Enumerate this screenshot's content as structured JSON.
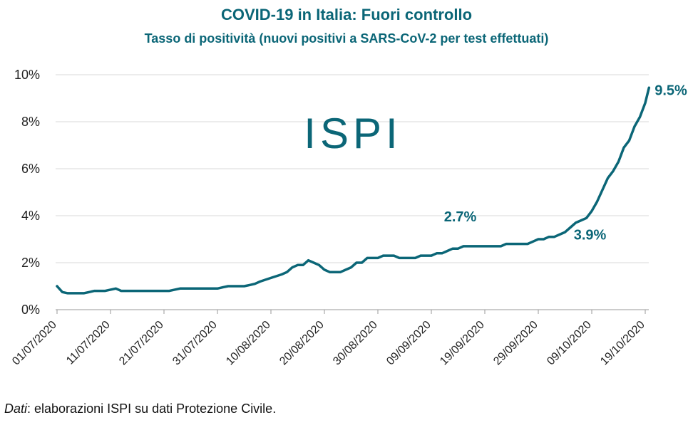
{
  "chart_data": {
    "type": "line",
    "title": "COVID-19 in Italia: Fuori controllo",
    "subtitle": "Tasso di positività (nuovi positivi a SARS-CoV-2 per test effettuati)",
    "xlabel": "",
    "ylabel": "",
    "ylim": [
      0,
      10
    ],
    "yticks": [
      {
        "value": 0,
        "label": "0%"
      },
      {
        "value": 2,
        "label": "2%"
      },
      {
        "value": 4,
        "label": "4%"
      },
      {
        "value": 6,
        "label": "6%"
      },
      {
        "value": 8,
        "label": "8%"
      },
      {
        "value": 10,
        "label": "10%"
      }
    ],
    "xticks": [
      {
        "day": 0,
        "label": "01/07/2020"
      },
      {
        "day": 10,
        "label": "11/07/2020"
      },
      {
        "day": 20,
        "label": "21/07/2020"
      },
      {
        "day": 30,
        "label": "31/07/2020"
      },
      {
        "day": 40,
        "label": "10/08/2020"
      },
      {
        "day": 50,
        "label": "20/08/2020"
      },
      {
        "day": 60,
        "label": "30/08/2020"
      },
      {
        "day": 70,
        "label": "09/09/2020"
      },
      {
        "day": 80,
        "label": "19/09/2020"
      },
      {
        "day": 90,
        "label": "29/09/2020"
      },
      {
        "day": 100,
        "label": "09/10/2020"
      },
      {
        "day": 110,
        "label": "19/10/2020"
      }
    ],
    "series": [
      {
        "name": "Tasso di positività",
        "color": "#0b6677",
        "points": [
          [
            0,
            1.0
          ],
          [
            1,
            0.75
          ],
          [
            2,
            0.7
          ],
          [
            3,
            0.7
          ],
          [
            4,
            0.7
          ],
          [
            5,
            0.7
          ],
          [
            6,
            0.75
          ],
          [
            7,
            0.8
          ],
          [
            8,
            0.8
          ],
          [
            9,
            0.8
          ],
          [
            10,
            0.85
          ],
          [
            11,
            0.9
          ],
          [
            12,
            0.8
          ],
          [
            13,
            0.8
          ],
          [
            14,
            0.8
          ],
          [
            15,
            0.8
          ],
          [
            20,
            0.8
          ],
          [
            21,
            0.8
          ],
          [
            22,
            0.85
          ],
          [
            23,
            0.9
          ],
          [
            24,
            0.9
          ],
          [
            30,
            0.9
          ],
          [
            31,
            0.95
          ],
          [
            32,
            1.0
          ],
          [
            35,
            1.0
          ],
          [
            36,
            1.05
          ],
          [
            37,
            1.1
          ],
          [
            38,
            1.2
          ],
          [
            40,
            1.35
          ],
          [
            42,
            1.5
          ],
          [
            43,
            1.6
          ],
          [
            44,
            1.8
          ],
          [
            45,
            1.9
          ],
          [
            46,
            1.9
          ],
          [
            47,
            2.1
          ],
          [
            48,
            2.0
          ],
          [
            49,
            1.9
          ],
          [
            50,
            1.7
          ],
          [
            51,
            1.6
          ],
          [
            52,
            1.6
          ],
          [
            53,
            1.6
          ],
          [
            54,
            1.7
          ],
          [
            55,
            1.8
          ],
          [
            56,
            2.0
          ],
          [
            57,
            2.0
          ],
          [
            58,
            2.2
          ],
          [
            59,
            2.2
          ],
          [
            60,
            2.2
          ],
          [
            61,
            2.3
          ],
          [
            62,
            2.3
          ],
          [
            63,
            2.3
          ],
          [
            64,
            2.2
          ],
          [
            65,
            2.2
          ],
          [
            66,
            2.2
          ],
          [
            67,
            2.2
          ],
          [
            68,
            2.3
          ],
          [
            69,
            2.3
          ],
          [
            70,
            2.3
          ],
          [
            71,
            2.4
          ],
          [
            72,
            2.4
          ],
          [
            73,
            2.5
          ],
          [
            74,
            2.6
          ],
          [
            75,
            2.6
          ],
          [
            76,
            2.7
          ],
          [
            80,
            2.7
          ],
          [
            82,
            2.7
          ],
          [
            83,
            2.7
          ],
          [
            84,
            2.8
          ],
          [
            85,
            2.8
          ],
          [
            87,
            2.8
          ],
          [
            88,
            2.8
          ],
          [
            89,
            2.9
          ],
          [
            90,
            3.0
          ],
          [
            91,
            3.0
          ],
          [
            92,
            3.1
          ],
          [
            93,
            3.1
          ],
          [
            94,
            3.2
          ],
          [
            95,
            3.3
          ],
          [
            96,
            3.5
          ],
          [
            97,
            3.7
          ],
          [
            98,
            3.8
          ],
          [
            99,
            3.9
          ],
          [
            100,
            4.2
          ],
          [
            101,
            4.6
          ],
          [
            102,
            5.1
          ],
          [
            103,
            5.6
          ],
          [
            104,
            5.9
          ],
          [
            105,
            6.3
          ],
          [
            106,
            6.9
          ],
          [
            107,
            7.2
          ],
          [
            108,
            7.8
          ],
          [
            109,
            8.2
          ],
          [
            110,
            8.8
          ],
          [
            110.7,
            9.45
          ]
        ]
      }
    ],
    "annotations": [
      {
        "text": "2.7%",
        "day": 75,
        "value": 2.7
      },
      {
        "text": "3.9%",
        "day": 99,
        "value": 3.9
      },
      {
        "text": "9.5%",
        "day": 110.7,
        "value": 9.5
      }
    ],
    "logo": "ISPI",
    "source_prefix": "Dati",
    "source_rest": ": elaborazioni ISPI su dati Protezione Civile."
  }
}
